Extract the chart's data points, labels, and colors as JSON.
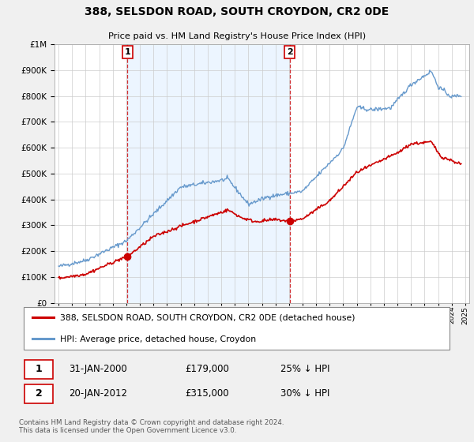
{
  "title": "388, SELSDON ROAD, SOUTH CROYDON, CR2 0DE",
  "subtitle": "Price paid vs. HM Land Registry's House Price Index (HPI)",
  "legend_red": "388, SELSDON ROAD, SOUTH CROYDON, CR2 0DE (detached house)",
  "legend_blue": "HPI: Average price, detached house, Croydon",
  "footnote": "Contains HM Land Registry data © Crown copyright and database right 2024.\nThis data is licensed under the Open Government Licence v3.0.",
  "annotation1_date": "31-JAN-2000",
  "annotation1_price": "£179,000",
  "annotation1_hpi": "25% ↓ HPI",
  "annotation2_date": "20-JAN-2012",
  "annotation2_price": "£315,000",
  "annotation2_hpi": "30% ↓ HPI",
  "red_color": "#cc0000",
  "blue_color": "#6699cc",
  "blue_fill": "#ddeeff",
  "background_color": "#f0f0f0",
  "plot_bg_color": "#ffffff",
  "grid_color": "#cccccc",
  "ylim": [
    0,
    1000000
  ],
  "xlim_start": 1994.7,
  "xlim_end": 2025.3,
  "sale1_x": 2000.08,
  "sale1_y": 179000,
  "sale2_x": 2012.05,
  "sale2_y": 315000
}
